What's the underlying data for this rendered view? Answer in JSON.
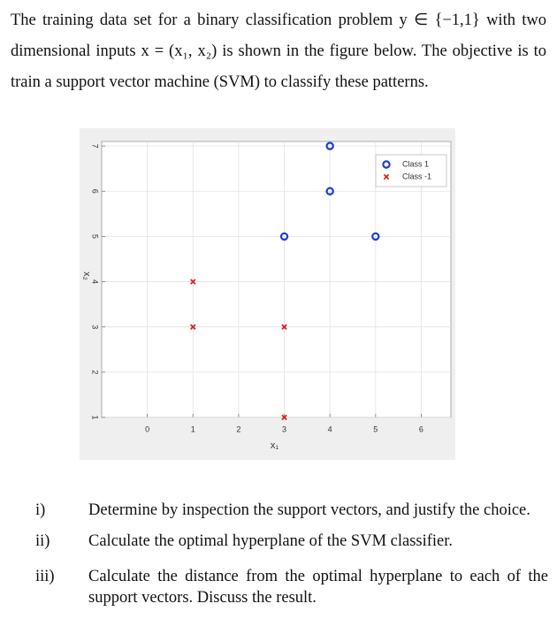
{
  "intro": "The training data set for a binary classification problem y ∈ {−1,1} with two dimensional inputs x = (x₁, x₂) is shown in the figure below. The objective is to train a support vector machine (SVM) to classify these patterns.",
  "chart_data": {
    "type": "scatter",
    "x_label": "x₁",
    "y_label": "x₂",
    "series": [
      {
        "name": "Class 1",
        "color": "#1a3fd0",
        "marker": "circle",
        "x": [
          3,
          4,
          4,
          5
        ],
        "y": [
          5,
          6,
          7,
          5
        ]
      },
      {
        "name": "Class -1",
        "color": "#e02020",
        "marker": "x",
        "x": [
          1,
          1,
          3,
          3
        ],
        "y": [
          4,
          3,
          3,
          1
        ]
      }
    ],
    "xlim": [
      -1,
      6.65
    ],
    "ylim": [
      1,
      7.1
    ],
    "xticks": [
      0,
      1,
      2,
      3,
      4,
      5,
      6
    ],
    "yticks": [
      1,
      2,
      3,
      4,
      5,
      6,
      7
    ],
    "grid": true,
    "legend": "northeast"
  },
  "questions": [
    {
      "number": "i)",
      "text": "Determine by inspection the support vectors, and justify the choice."
    },
    {
      "number": "ii)",
      "text": "Calculate the optimal hyperplane of the SVM classifier."
    },
    {
      "number": "iii)",
      "text": "Calculate the distance from the optimal hyperplane to each of the support vectors. Discuss the result."
    }
  ]
}
